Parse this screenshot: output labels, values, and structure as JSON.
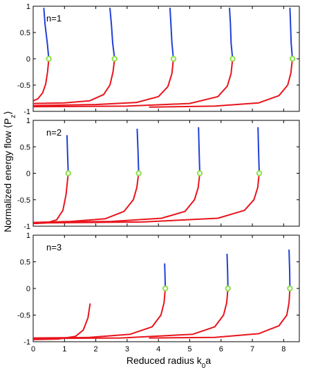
{
  "chart_data": {
    "type": "line",
    "xlabel_main": "Reduced radius k",
    "xlabel_sub": "0",
    "xlabel_tail": "a",
    "ylabel_main": "Normalized energy flow ⟨P",
    "ylabel_sub": "z",
    "ylabel_tail": "⟩",
    "xlim": [
      0,
      8.5
    ],
    "x_ticks": [
      0,
      1,
      2,
      3,
      4,
      5,
      6,
      7,
      8
    ],
    "x_tick_labels": [
      "0",
      "1",
      "2",
      "3",
      "4",
      "5",
      "6",
      "7",
      "8"
    ],
    "ylim": [
      -1,
      1
    ],
    "y_ticks": [
      -1,
      -0.5,
      0,
      0.5,
      1
    ],
    "y_tick_labels": [
      "-1",
      "-0.5",
      "0",
      "0.5",
      "1"
    ],
    "colors": {
      "upper_branch": "#1f3fd6",
      "lower_branch": "#e8141c",
      "marker": "#8ee04a"
    },
    "panels": [
      {
        "label": "n=1",
        "markers": [
          0.5,
          2.6,
          4.48,
          6.37,
          8.28
        ],
        "upper_branches": [
          {
            "x": [
              0.5,
              0.45,
              0.38,
              0.34
            ],
            "y": [
              0,
              0.3,
              0.65,
              0.97
            ]
          },
          {
            "x": [
              2.6,
              2.54,
              2.5,
              2.45
            ],
            "y": [
              0,
              0.3,
              0.65,
              0.97
            ]
          },
          {
            "x": [
              4.48,
              4.43,
              4.4,
              4.37
            ],
            "y": [
              0,
              0.3,
              0.65,
              0.97
            ]
          },
          {
            "x": [
              6.37,
              6.32,
              6.3,
              6.27
            ],
            "y": [
              0,
              0.3,
              0.65,
              0.97
            ]
          },
          {
            "x": [
              8.28,
              8.24,
              8.22,
              8.2
            ],
            "y": [
              0,
              0.3,
              0.65,
              0.97
            ]
          }
        ],
        "lower_branches": [
          {
            "x": [
              0.0,
              0.15,
              0.3,
              0.4,
              0.46,
              0.5
            ],
            "y": [
              -0.8,
              -0.76,
              -0.65,
              -0.48,
              -0.25,
              0
            ]
          },
          {
            "x": [
              0.0,
              1.0,
              1.8,
              2.25,
              2.45,
              2.55,
              2.6
            ],
            "y": [
              -0.85,
              -0.84,
              -0.8,
              -0.68,
              -0.5,
              -0.25,
              0
            ]
          },
          {
            "x": [
              0.0,
              2.0,
              3.3,
              4.0,
              4.3,
              4.43,
              4.48
            ],
            "y": [
              -0.89,
              -0.87,
              -0.83,
              -0.72,
              -0.53,
              -0.28,
              0
            ]
          },
          {
            "x": [
              0.0,
              3.0,
              5.0,
              5.9,
              6.2,
              6.32,
              6.37
            ],
            "y": [
              -0.91,
              -0.9,
              -0.85,
              -0.72,
              -0.52,
              -0.28,
              0
            ]
          },
          {
            "x": [
              3.7,
              5.8,
              7.2,
              7.85,
              8.13,
              8.23,
              8.28
            ],
            "y": [
              -0.92,
              -0.9,
              -0.84,
              -0.7,
              -0.5,
              -0.27,
              0
            ]
          }
        ]
      },
      {
        "label": "n=2",
        "markers": [
          1.12,
          3.37,
          5.32,
          7.22
        ],
        "upper_branches": [
          {
            "x": [
              1.12,
              1.1,
              1.08
            ],
            "y": [
              0,
              0.35,
              0.72
            ]
          },
          {
            "x": [
              3.37,
              3.35,
              3.32
            ],
            "y": [
              0,
              0.4,
              0.84
            ]
          },
          {
            "x": [
              5.32,
              5.3,
              5.28
            ],
            "y": [
              0,
              0.4,
              0.87
            ]
          },
          {
            "x": [
              7.22,
              7.2,
              7.18
            ],
            "y": [
              0,
              0.4,
              0.87
            ]
          }
        ],
        "lower_branches": [
          {
            "x": [
              0.0,
              0.4,
              0.75,
              0.95,
              1.05,
              1.12
            ],
            "y": [
              -0.95,
              -0.94,
              -0.88,
              -0.7,
              -0.4,
              0
            ]
          },
          {
            "x": [
              0.0,
              1.2,
              2.3,
              2.9,
              3.2,
              3.31,
              3.37
            ],
            "y": [
              -0.93,
              -0.91,
              -0.86,
              -0.72,
              -0.5,
              -0.27,
              0
            ]
          },
          {
            "x": [
              0.0,
              2.5,
              4.1,
              4.85,
              5.15,
              5.27,
              5.32
            ],
            "y": [
              -0.93,
              -0.91,
              -0.85,
              -0.72,
              -0.5,
              -0.27,
              0
            ]
          },
          {
            "x": [
              0.0,
              3.5,
              5.9,
              6.75,
              7.05,
              7.17,
              7.22
            ],
            "y": [
              -0.94,
              -0.92,
              -0.85,
              -0.7,
              -0.5,
              -0.27,
              0
            ]
          }
        ]
      },
      {
        "label": "n=3",
        "markers": [
          4.22,
          6.22,
          8.2
        ],
        "upper_branches": [
          {
            "x": [
              4.22,
              4.21,
              4.2
            ],
            "y": [
              0,
              0.25,
              0.47
            ]
          },
          {
            "x": [
              6.22,
              6.21,
              6.19
            ],
            "y": [
              0,
              0.3,
              0.65
            ]
          },
          {
            "x": [
              8.2,
              8.19,
              8.17
            ],
            "y": [
              0,
              0.35,
              0.73
            ]
          }
        ],
        "lower_branches": [
          {
            "x": [
              0.0,
              0.8,
              1.35,
              1.6,
              1.75,
              1.82
            ],
            "y": [
              -0.96,
              -0.95,
              -0.9,
              -0.78,
              -0.55,
              -0.28
            ]
          },
          {
            "x": [
              0.0,
              1.8,
              3.1,
              3.8,
              4.08,
              4.18,
              4.22
            ],
            "y": [
              -0.93,
              -0.92,
              -0.86,
              -0.72,
              -0.5,
              -0.27,
              0
            ]
          },
          {
            "x": [
              0.0,
              2.8,
              5.1,
              5.8,
              6.08,
              6.18,
              6.22
            ],
            "y": [
              -0.94,
              -0.93,
              -0.86,
              -0.72,
              -0.5,
              -0.27,
              0
            ]
          },
          {
            "x": [
              3.7,
              5.8,
              7.2,
              7.85,
              8.1,
              8.17,
              8.2
            ],
            "y": [
              -0.93,
              -0.92,
              -0.85,
              -0.7,
              -0.5,
              -0.27,
              0
            ]
          }
        ]
      }
    ]
  }
}
